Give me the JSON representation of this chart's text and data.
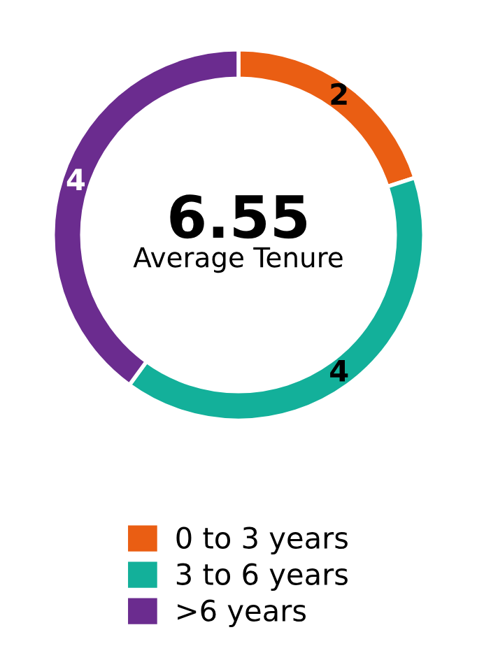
{
  "chart_data": {
    "type": "donut",
    "categories": [
      "0 to 3 years",
      "3 to 6 years",
      ">6 years"
    ],
    "values": [
      2,
      4,
      4
    ],
    "colors": [
      "#ea5e13",
      "#13b09a",
      "#6b2c8f"
    ],
    "data_labels": true,
    "legend": "bottom",
    "annotations": [
      "6.55",
      "Average Tenure"
    ]
  }
}
